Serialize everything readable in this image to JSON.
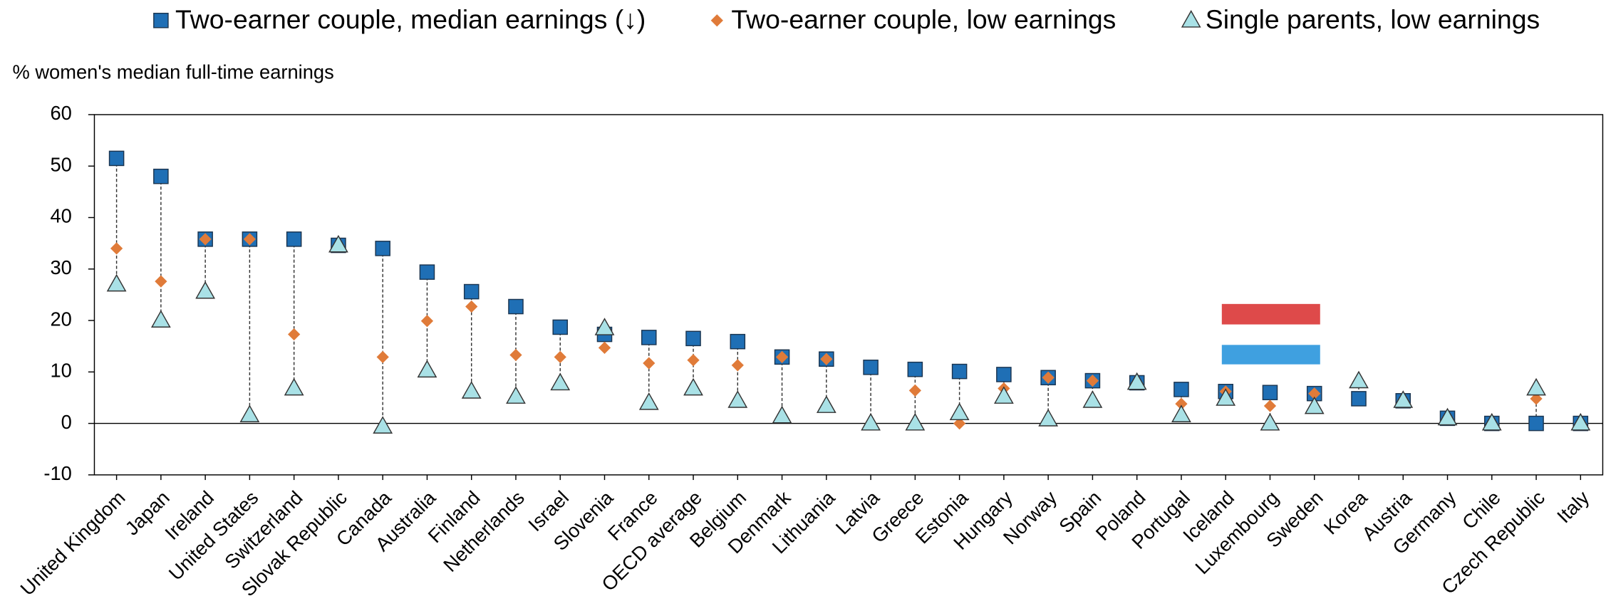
{
  "chart_data": {
    "type": "dot",
    "y_axis_label": "% women's median full-time earnings",
    "categories": [
      "United Kingdom",
      "Japan",
      "Ireland",
      "United States",
      "Switzerland",
      "Slovak Republic",
      "Canada",
      "Australia",
      "Finland",
      "Netherlands",
      "Israel",
      "Slovenia",
      "France",
      "OECD average",
      "Belgium",
      "Denmark",
      "Lithuania",
      "Latvia",
      "Greece",
      "Estonia",
      "Hungary",
      "Norway",
      "Spain",
      "Poland",
      "Portugal",
      "Iceland",
      "Luxembourg",
      "Sweden",
      "Korea",
      "Austria",
      "Germany",
      "Chile",
      "Czech Republic",
      "Italy"
    ],
    "series": [
      {
        "name": "Two-earner couple, median earnings (↓)",
        "color": "#1f6fb5",
        "marker": "square",
        "values": [
          51.5,
          48,
          35.8,
          35.8,
          35.8,
          34.6,
          34,
          29.4,
          25.6,
          22.7,
          18.7,
          17.3,
          16.7,
          16.5,
          15.9,
          12.9,
          12.5,
          10.9,
          10.5,
          10.1,
          9.5,
          8.9,
          8.3,
          7.9,
          6.6,
          6.2,
          6,
          5.8,
          4.8,
          4.4,
          1,
          0,
          0,
          0
        ]
      },
      {
        "name": "Two-earner couple, low earnings",
        "color": "#e07b39",
        "marker": "diamond",
        "values": [
          34,
          27.6,
          35.8,
          35.8,
          17.3,
          34.6,
          12.9,
          19.9,
          22.7,
          13.3,
          12.9,
          14.7,
          11.7,
          12.3,
          11.3,
          12.9,
          12.5,
          0,
          6.4,
          0,
          6.8,
          8.9,
          8.3,
          7.9,
          3.8,
          6.2,
          3.4,
          5.8,
          8.2,
          4.4,
          1,
          0,
          4.8,
          0
        ]
      },
      {
        "name": "Single parents, low earnings",
        "color": "#a9e1e6",
        "marker": "triangle",
        "values": [
          27,
          20,
          25.6,
          1.6,
          6.8,
          34.6,
          -0.6,
          10.3,
          6.2,
          5.2,
          7.8,
          18.5,
          4,
          6.8,
          4.4,
          1.4,
          3.4,
          0,
          0,
          2,
          5.2,
          0.8,
          4.4,
          7.9,
          1.6,
          4.8,
          0,
          3.2,
          8.2,
          4.4,
          1,
          0,
          6.8,
          0
        ]
      }
    ],
    "ylim": [
      -10,
      60
    ],
    "yticks": [
      -10,
      0,
      10,
      20,
      30,
      40,
      50,
      60
    ],
    "grid": false
  }
}
